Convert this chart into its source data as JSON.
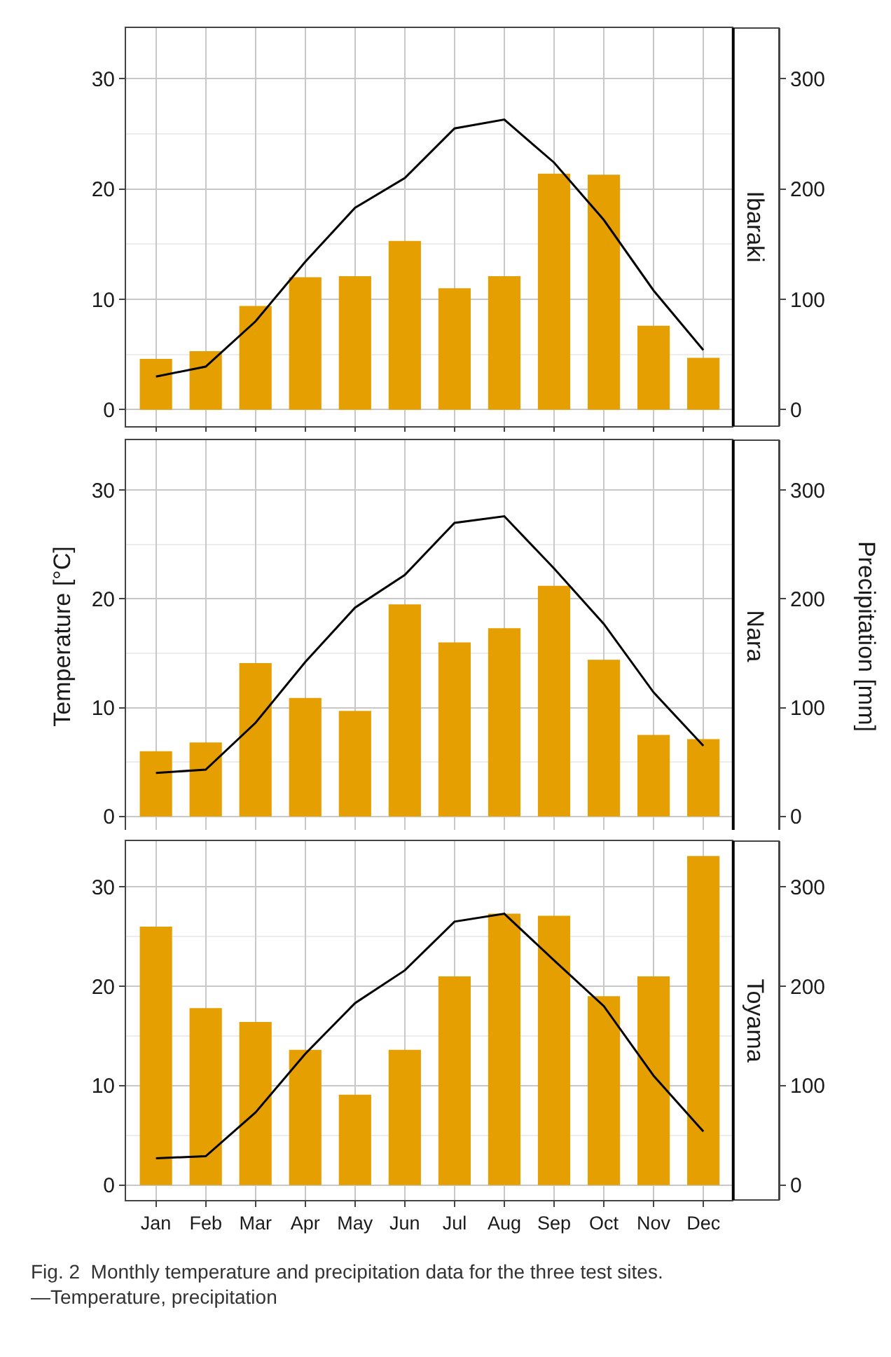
{
  "chart_data": [
    {
      "type": "bar",
      "title": "Ibaraki",
      "categories": [
        null,
        null,
        null,
        null,
        null,
        null,
        null,
        null,
        null,
        null,
        null,
        null
      ],
      "series": [
        {
          "type": "bar",
          "axis": "y2",
          "color": "#e69f00",
          "values": [
            46,
            53,
            94,
            120,
            121,
            153,
            110,
            121,
            214,
            213,
            76,
            47
          ]
        },
        {
          "type": "line",
          "axis": "y",
          "color": "#000000",
          "values": [
            3.0,
            3.9,
            8.0,
            13.4,
            18.3,
            21.0,
            25.5,
            26.3,
            22.4,
            17.2,
            10.8,
            5.4
          ]
        }
      ],
      "ylim": [
        -1.5,
        34.6
      ],
      "yticks": [
        0,
        10,
        20,
        30
      ],
      "y2lim": [
        -15,
        346
      ],
      "y2ticks": [
        0,
        100,
        200,
        300
      ],
      "grid": true,
      "tick_labels": "y"
    },
    {
      "type": "bar",
      "title": "Nara",
      "ylabel": "Temperature [°C]",
      "y2label": "Precipitation [mm]",
      "categories": [
        null,
        null,
        null,
        null,
        null,
        null,
        null,
        null,
        null,
        null,
        null,
        null
      ],
      "series": [
        {
          "type": "bar",
          "axis": "y2",
          "color": "#e69f00",
          "values": [
            60,
            68,
            141,
            109,
            97,
            195,
            160,
            173,
            212,
            144,
            75,
            71
          ]
        },
        {
          "type": "line",
          "axis": "y",
          "color": "#000000",
          "values": [
            4.0,
            4.3,
            8.6,
            14.2,
            19.2,
            22.2,
            27.0,
            27.6,
            22.8,
            17.7,
            11.4,
            6.5
          ]
        }
      ],
      "ylim": [
        -1.5,
        34.6
      ],
      "yticks": [
        0,
        10,
        20,
        30
      ],
      "y2lim": [
        -15,
        346
      ],
      "y2ticks": [
        0,
        100,
        200,
        300
      ],
      "grid": true,
      "tick_labels": "y"
    },
    {
      "type": "bar",
      "title": "Toyama",
      "categories": [
        "Jan",
        "Feb",
        "Mar",
        "Apr",
        "May",
        "Jun",
        "Jul",
        "Aug",
        "Sep",
        "Oct",
        "Nov",
        "Dec"
      ],
      "series": [
        {
          "type": "bar",
          "axis": "y2",
          "color": "#e69f00",
          "values": [
            260,
            178,
            164,
            136,
            91,
            136,
            210,
            273,
            271,
            190,
            210,
            331
          ]
        },
        {
          "type": "line",
          "axis": "y",
          "color": "#000000",
          "values": [
            2.7,
            2.9,
            7.3,
            13.2,
            18.3,
            21.6,
            26.5,
            27.3,
            22.6,
            18.0,
            11.0,
            5.4
          ]
        }
      ],
      "ylim": [
        -1.5,
        34.6
      ],
      "yticks": [
        0,
        10,
        20,
        30
      ],
      "y2lim": [
        -15,
        346
      ],
      "y2ticks": [
        0,
        100,
        200,
        300
      ],
      "grid": true,
      "annotations": [
        "Fig. 2  Monthly temperature and precipitation data for the three test sites. —Temperature, precipitation"
      ]
    }
  ]
}
